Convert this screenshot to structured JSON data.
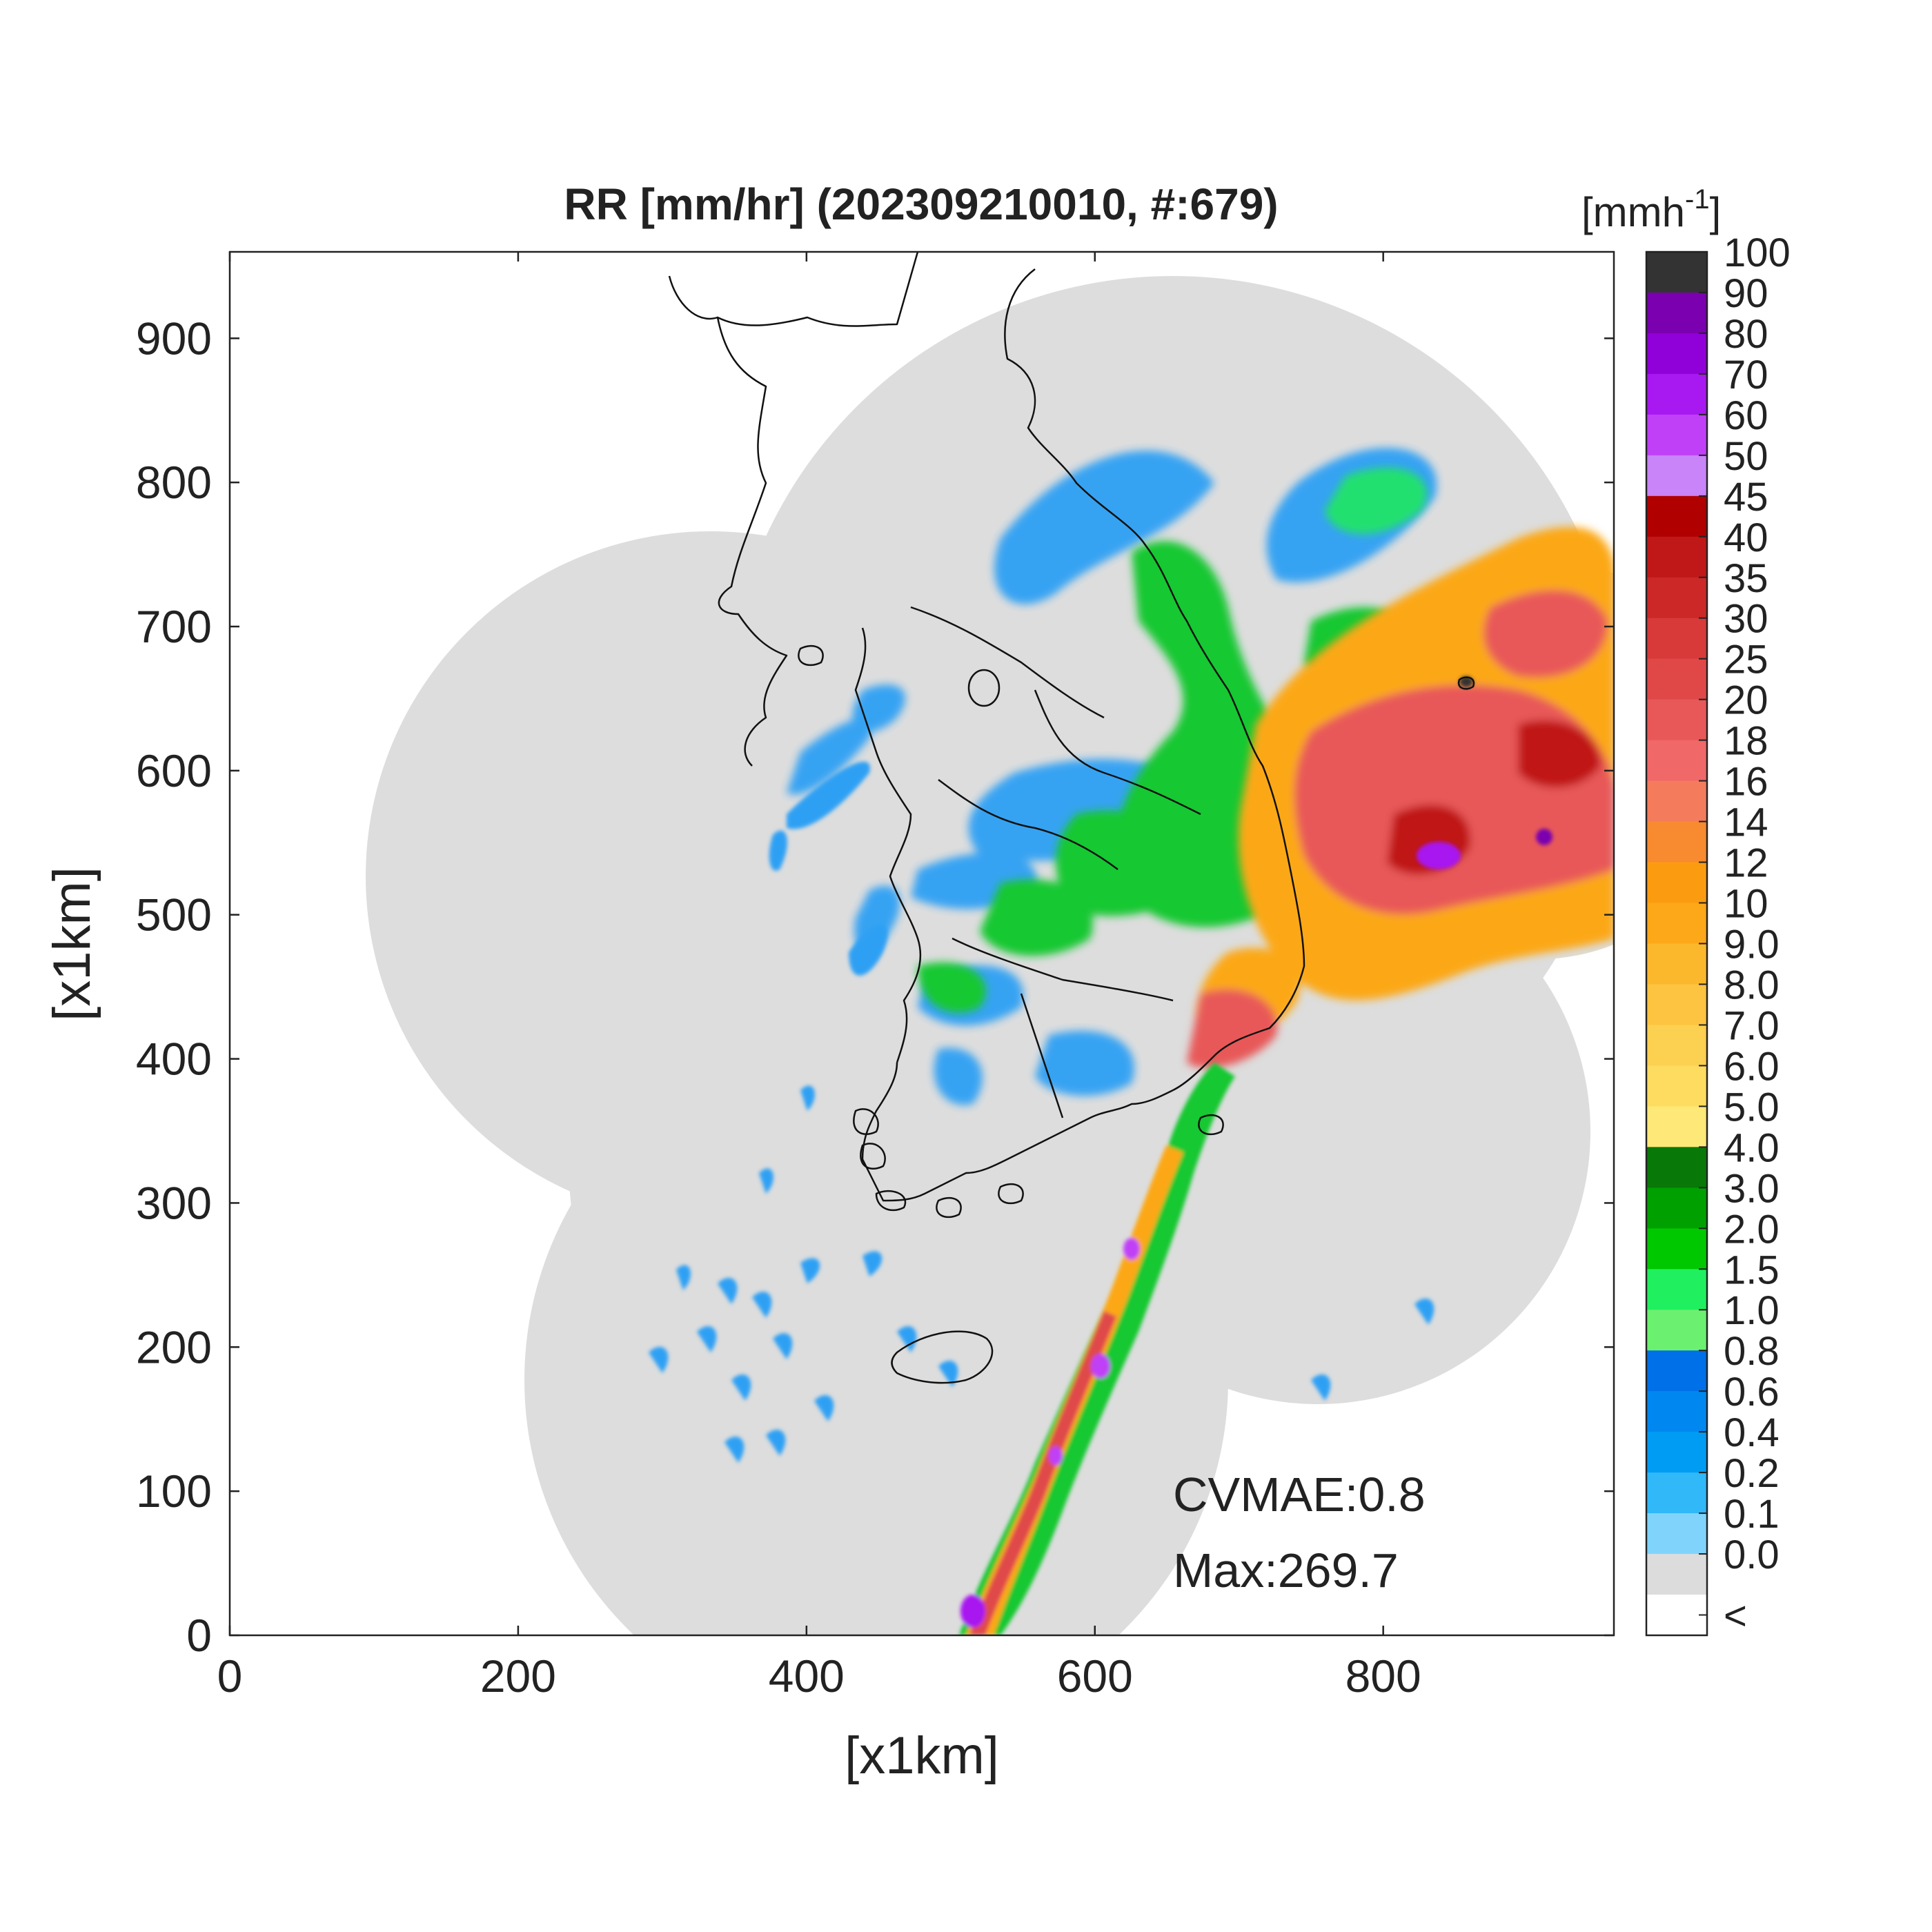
{
  "title": "RR [mm/hr] (202309210010, #:679)",
  "xlabel": "[x1km]",
  "ylabel": "[x1km]",
  "x_ticks": [
    "0",
    "200",
    "400",
    "600",
    "800"
  ],
  "y_ticks": [
    "0",
    "100",
    "200",
    "300",
    "400",
    "500",
    "600",
    "700",
    "800",
    "900"
  ],
  "colorbar": {
    "unit_label": "[mmh",
    "unit_exp": "-1",
    "unit_close": "]",
    "labels": [
      "100",
      "90",
      "80",
      "70",
      "60",
      "50",
      "45",
      "40",
      "35",
      "30",
      "25",
      "20",
      "18",
      "16",
      "14",
      "12",
      "10",
      "9.0",
      "8.0",
      "7.0",
      "6.0",
      "5.0",
      "4.0",
      "3.0",
      "2.0",
      "1.5",
      "1.0",
      "0.8",
      "0.6",
      "0.4",
      "0.2",
      "0.1",
      "0.0",
      "<"
    ],
    "colors": [
      "#333333",
      "#7a00b0",
      "#9000d8",
      "#a818f0",
      "#c040f8",
      "#c884f8",
      "#b00000",
      "#c01818",
      "#cc2828",
      "#d83a3a",
      "#e04848",
      "#e85858",
      "#f06868",
      "#f47c5c",
      "#f88a30",
      "#fb9c10",
      "#fca818",
      "#fcb82c",
      "#fcc440",
      "#fcd050",
      "#fedc60",
      "#fee878",
      "#087808",
      "#00a000",
      "#00c800",
      "#20f060",
      "#6cf070",
      "#0070e8",
      "#0088f0",
      "#009cf4",
      "#30b8f8",
      "#80d4fc",
      "#dcdcdc",
      "#ffffff"
    ]
  },
  "annotations": {
    "cvmae": "CVMAE:0.8",
    "max": "Max:269.7"
  },
  "colors": {
    "radar_coverage": "#dddddd",
    "coastline": "#111111"
  }
}
